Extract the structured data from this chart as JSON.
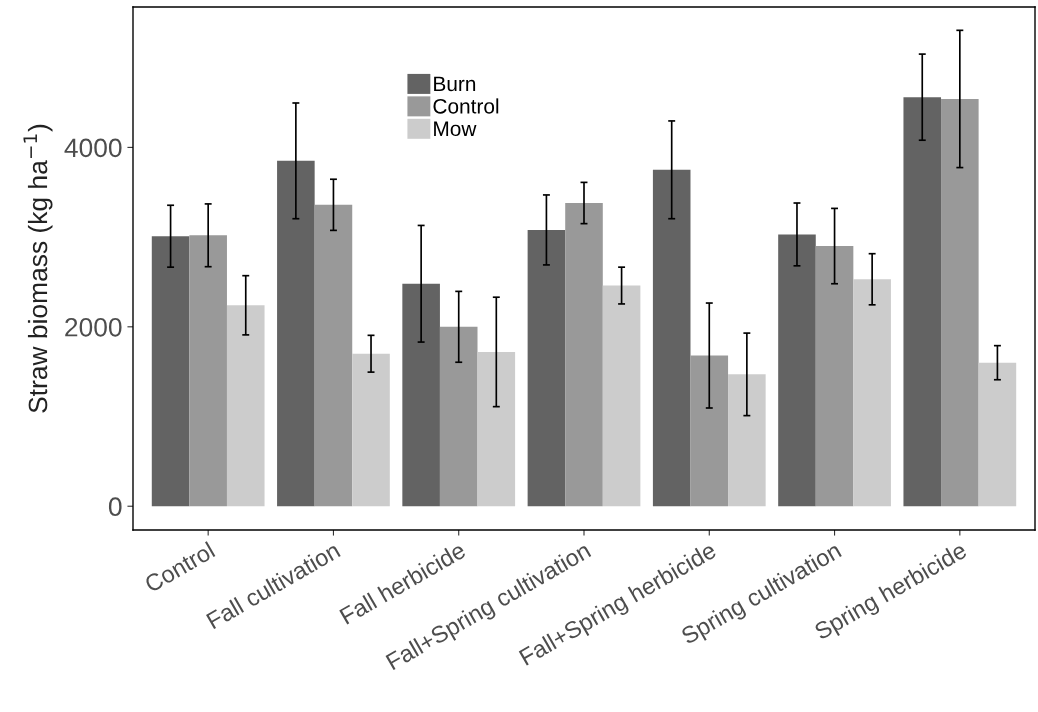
{
  "chart_data": {
    "type": "bar",
    "ylabel": "Straw biomass (kg ha$^{−1}$)",
    "categories": [
      "Control",
      "Fall cultivation",
      "Fall herbicide",
      "Fall+Spring cultivation",
      "Fall+Spring herbicide",
      "Spring cultivation",
      "Spring herbicide"
    ],
    "series": [
      {
        "name": "Burn",
        "color": "#636363",
        "values": [
          3010,
          3850,
          2480,
          3080,
          3750,
          3030,
          4560
        ],
        "errors": [
          345,
          645,
          650,
          390,
          545,
          350,
          480
        ]
      },
      {
        "name": "Control",
        "color": "#999999",
        "values": [
          3020,
          3360,
          2000,
          3380,
          1680,
          2900,
          4540
        ],
        "errors": [
          350,
          285,
          395,
          230,
          585,
          420,
          765
        ]
      },
      {
        "name": "Mow",
        "color": "#cccccc",
        "values": [
          2240,
          1700,
          1720,
          2460,
          1470,
          2530,
          1600
        ],
        "errors": [
          330,
          205,
          610,
          205,
          460,
          285,
          190
        ]
      }
    ],
    "ylim": [
      -265,
      5565
    ],
    "yticks": [
      0,
      2000,
      4000
    ],
    "grid": false,
    "legend": "top"
  }
}
